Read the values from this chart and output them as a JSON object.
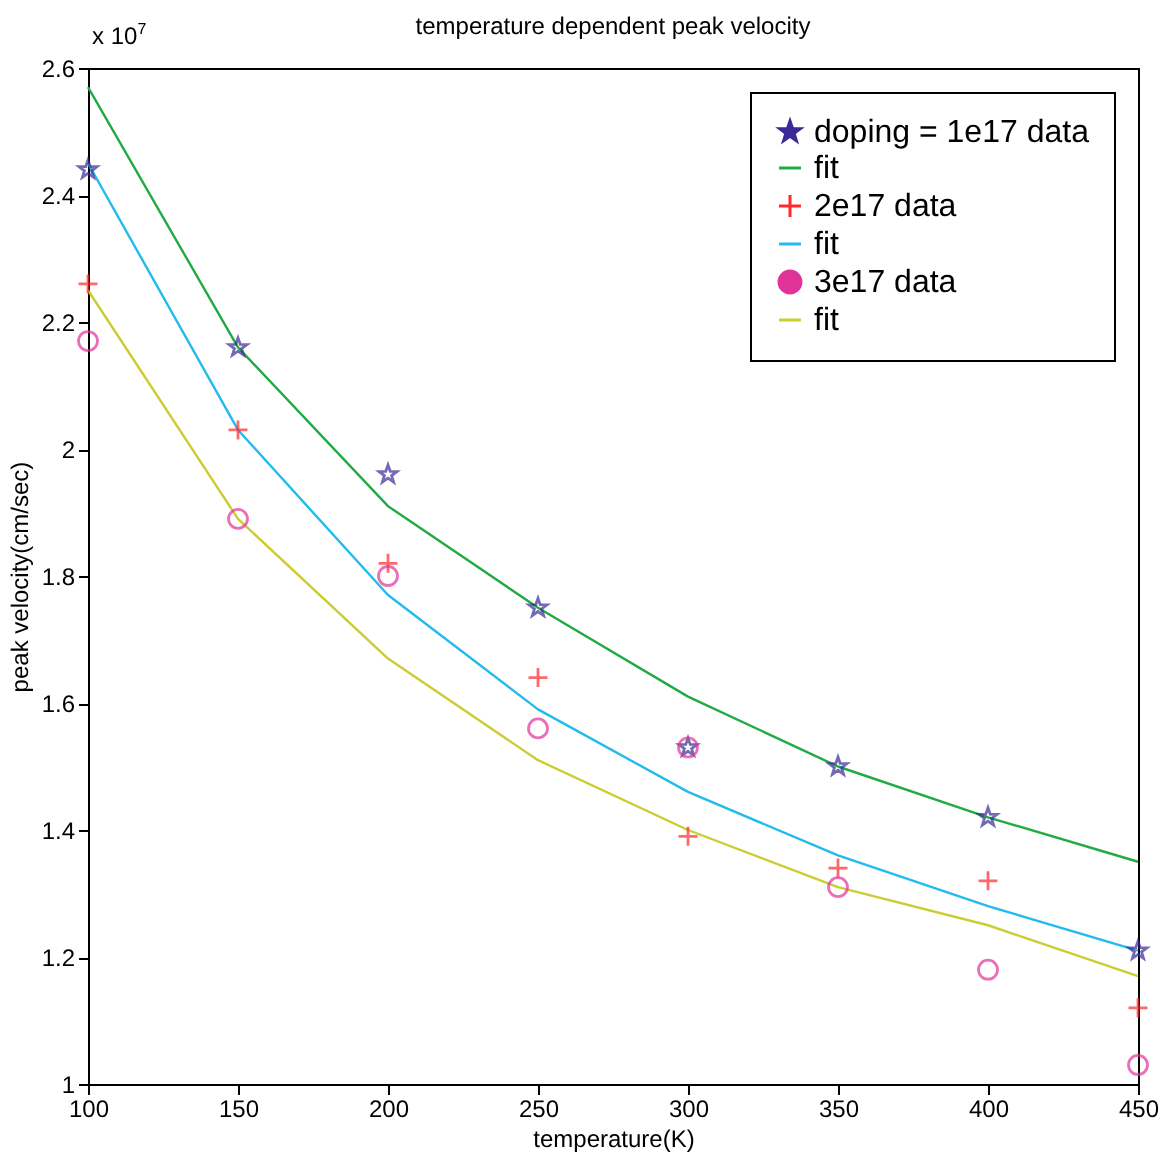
{
  "chart_data": {
    "type": "scatter",
    "title": "temperature dependent peak velocity",
    "xlabel": "temperature(K)",
    "ylabel": "peak velocity(cm/sec)",
    "annotations": [
      "x 10$^{7}$"
    ],
    "x": [
      100,
      150,
      200,
      250,
      300,
      350,
      400,
      450
    ],
    "series": [
      {
        "name": "doping = 1e17 data",
        "marker": "star",
        "color": "#3a2a96",
        "values": [
          2.44,
          2.16,
          1.96,
          1.75,
          1.53,
          1.5,
          1.42,
          1.21
        ]
      },
      {
        "name": "fit",
        "type": "line",
        "marker": "none",
        "color": "#22aa44",
        "values": [
          2.57,
          2.16,
          1.91,
          1.75,
          1.61,
          1.5,
          1.42,
          1.35
        ]
      },
      {
        "name": "2e17 data",
        "marker": "cross",
        "color": "#ff2a2a",
        "values": [
          2.26,
          2.03,
          1.82,
          1.64,
          1.39,
          1.34,
          1.32,
          1.12
        ]
      },
      {
        "name": "fit",
        "type": "line",
        "marker": "none",
        "color": "#22bbee",
        "values": [
          2.45,
          2.03,
          1.77,
          1.59,
          1.46,
          1.36,
          1.28,
          1.21
        ]
      },
      {
        "name": "3e17 data",
        "marker": "circle",
        "color": "#e0339a",
        "values": [
          2.17,
          1.89,
          1.8,
          1.56,
          1.53,
          1.31,
          1.18,
          1.03
        ]
      },
      {
        "name": "fit",
        "type": "line",
        "marker": "none",
        "color": "#cccc33",
        "values": [
          2.25,
          1.89,
          1.67,
          1.51,
          1.4,
          1.31,
          1.25,
          1.17
        ]
      }
    ],
    "xlim": [
      100,
      450
    ],
    "xticks": [
      100,
      150,
      200,
      250,
      300,
      350,
      400,
      450
    ],
    "ylim": [
      1,
      2.6
    ],
    "yticks": [
      1,
      1.2,
      1.4,
      1.6,
      1.8,
      2,
      2.2,
      2.4,
      2.6
    ],
    "grid": false,
    "legend": "top right"
  }
}
